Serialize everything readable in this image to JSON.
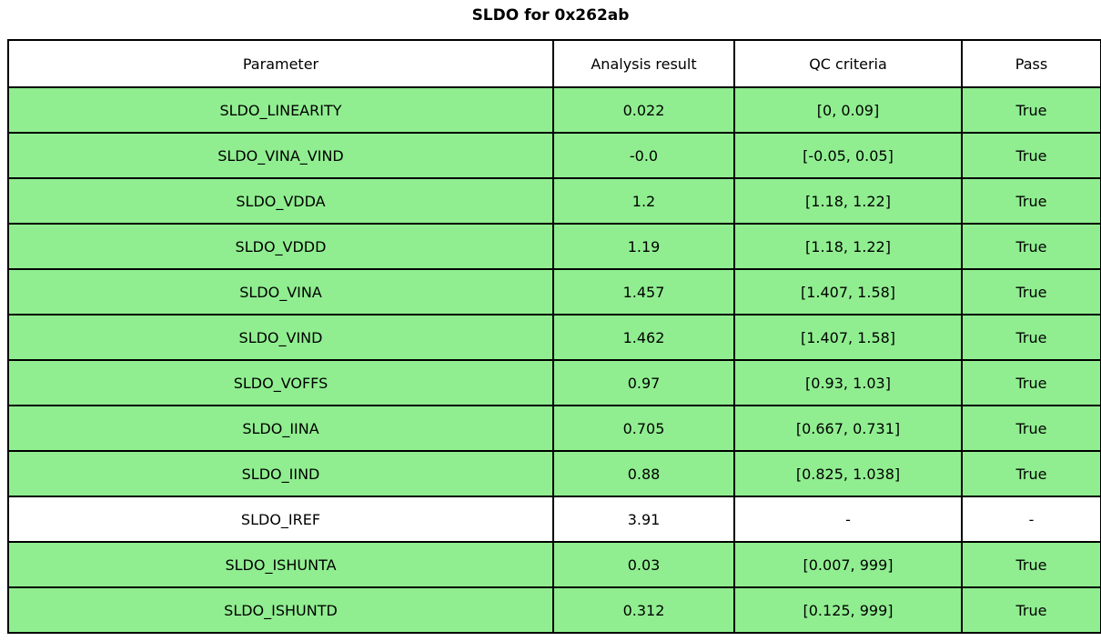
{
  "title": "SLDO for 0x262ab",
  "colors": {
    "pass_row_green": "#90EE90",
    "neutral_row_white": "#FFFFFF",
    "border_black": "#000000",
    "text_black": "#000000",
    "page_background": "#FFFFFF"
  },
  "table": {
    "headers": [
      "Parameter",
      "Analysis result",
      "QC criteria",
      "Pass"
    ],
    "rows": [
      {
        "parameter": "SLDO_LINEARITY",
        "result": "0.022",
        "qc": "[0, 0.09]",
        "pass": "True",
        "highlight": true
      },
      {
        "parameter": "SLDO_VINA_VIND",
        "result": "-0.0",
        "qc": "[-0.05, 0.05]",
        "pass": "True",
        "highlight": true
      },
      {
        "parameter": "SLDO_VDDA",
        "result": "1.2",
        "qc": "[1.18, 1.22]",
        "pass": "True",
        "highlight": true
      },
      {
        "parameter": "SLDO_VDDD",
        "result": "1.19",
        "qc": "[1.18, 1.22]",
        "pass": "True",
        "highlight": true
      },
      {
        "parameter": "SLDO_VINA",
        "result": "1.457",
        "qc": "[1.407, 1.58]",
        "pass": "True",
        "highlight": true
      },
      {
        "parameter": "SLDO_VIND",
        "result": "1.462",
        "qc": "[1.407, 1.58]",
        "pass": "True",
        "highlight": true
      },
      {
        "parameter": "SLDO_VOFFS",
        "result": "0.97",
        "qc": "[0.93, 1.03]",
        "pass": "True",
        "highlight": true
      },
      {
        "parameter": "SLDO_IINA",
        "result": "0.705",
        "qc": "[0.667, 0.731]",
        "pass": "True",
        "highlight": true
      },
      {
        "parameter": "SLDO_IIND",
        "result": "0.88",
        "qc": "[0.825, 1.038]",
        "pass": "True",
        "highlight": true
      },
      {
        "parameter": "SLDO_IREF",
        "result": "3.91",
        "qc": "-",
        "pass": "-",
        "highlight": false
      },
      {
        "parameter": "SLDO_ISHUNTA",
        "result": "0.03",
        "qc": "[0.007, 999]",
        "pass": "True",
        "highlight": true
      },
      {
        "parameter": "SLDO_ISHUNTD",
        "result": "0.312",
        "qc": "[0.125, 999]",
        "pass": "True",
        "highlight": true
      }
    ]
  },
  "chart_data": {
    "type": "table",
    "title": "SLDO for 0x262ab",
    "columns": [
      "Parameter",
      "Analysis result",
      "QC criteria",
      "Pass"
    ],
    "rows": [
      [
        "SLDO_LINEARITY",
        "0.022",
        "[0, 0.09]",
        "True"
      ],
      [
        "SLDO_VINA_VIND",
        "-0.0",
        "[-0.05, 0.05]",
        "True"
      ],
      [
        "SLDO_VDDA",
        "1.2",
        "[1.18, 1.22]",
        "True"
      ],
      [
        "SLDO_VDDD",
        "1.19",
        "[1.18, 1.22]",
        "True"
      ],
      [
        "SLDO_VINA",
        "1.457",
        "[1.407, 1.58]",
        "True"
      ],
      [
        "SLDO_VIND",
        "1.462",
        "[1.407, 1.58]",
        "True"
      ],
      [
        "SLDO_VOFFS",
        "0.97",
        "[0.93, 1.03]",
        "True"
      ],
      [
        "SLDO_IINA",
        "0.705",
        "[0.667, 0.731]",
        "True"
      ],
      [
        "SLDO_IIND",
        "0.88",
        "[0.825, 1.038]",
        "True"
      ],
      [
        "SLDO_IREF",
        "3.91",
        "-",
        "-"
      ],
      [
        "SLDO_ISHUNTA",
        "0.03",
        "[0.007, 999]",
        "True"
      ],
      [
        "SLDO_ISHUNTD",
        "0.312",
        "[0.125, 999]",
        "True"
      ]
    ],
    "highlight_color_passed_rows": "#90EE90",
    "unhighlighted_rows": [
      "SLDO_IREF"
    ],
    "header_background": "#FFFFFF",
    "grid": "on"
  }
}
